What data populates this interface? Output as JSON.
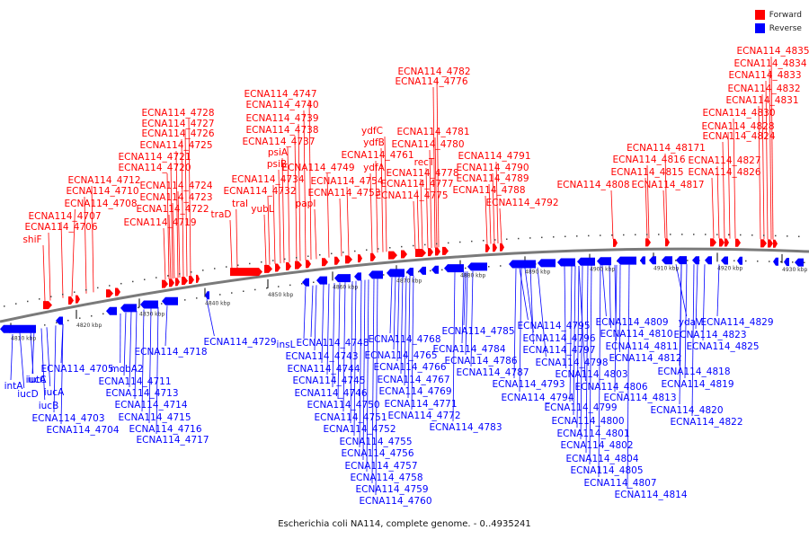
{
  "caption": "Escherichia coli NA114, complete genome. - 0..4935241",
  "legend": [
    {
      "label": "Forward",
      "color": "#ff0000"
    },
    {
      "label": "Reverse",
      "color": "#0000ff"
    }
  ],
  "colors": {
    "forward": "#ff0000",
    "reverse": "#0000ff",
    "backbone": "#7a7a7a"
  },
  "ticks": [
    {
      "label": "4810 kbp"
    },
    {
      "label": "4820 kbp"
    },
    {
      "label": "4830 kbp"
    },
    {
      "label": "4840 kbp"
    },
    {
      "label": "4850 kbp"
    },
    {
      "label": "4860 kbp"
    },
    {
      "label": "4870 kbp"
    },
    {
      "label": "4880 kbp"
    },
    {
      "label": "4890 kbp"
    },
    {
      "label": "4900 kbp"
    },
    {
      "label": "4910 kbp"
    },
    {
      "label": "4920 kbp"
    },
    {
      "label": "4930 kbp"
    }
  ],
  "forward_labels": [
    "shiF",
    "ECNA114_4706",
    "ECNA114_4707",
    "ECNA114_4708",
    "ECNA114_4710",
    "ECNA114_4712",
    "ECNA114_4719",
    "ECNA114_4722",
    "ECNA114_4723",
    "ECNA114_4724",
    "ECNA114_4720",
    "ECNA114_4721",
    "ECNA114_4725",
    "ECNA114_4726",
    "ECNA114_4727",
    "ECNA114_4728",
    "traD",
    "traI",
    "yubL",
    "ECNA114_4732",
    "ECNA114_4734",
    "psiB",
    "psiA",
    "ECNA114_4737",
    "ECNA114_4738",
    "ECNA114_4739",
    "ECNA114_4740",
    "ECNA114_4747",
    "papI",
    "ECNA114_4749",
    "ECNA114_4753",
    "ECNA114_4754",
    "ydfA",
    "ECNA114_4761",
    "ydfB",
    "ydfC",
    "ECNA114_4775",
    "ECNA114_4777",
    "ECNA114_4778",
    "recT",
    "ECNA114_4780",
    "ECNA114_4781",
    "ECNA114_4776",
    "ECNA114_4782",
    "ECNA114_4788",
    "ECNA114_4789",
    "ECNA114_4790",
    "ECNA114_4791",
    "ECNA114_4792",
    "ECNA114_4808",
    "ECNA114_4817",
    "ECNA114_4815",
    "ECNA114_4816",
    "ECNA114_48171",
    "ECNA114_4826",
    "ECNA114_4827",
    "ECNA114_4824",
    "ECNA114_4828",
    "ECNA114_4830",
    "ECNA114_4831",
    "ECNA114_4832",
    "ECNA114_4833",
    "ECNA114_4834",
    "ECNA114_4835"
  ],
  "reverse_labels": [
    "intA",
    "iucD",
    "iutA",
    "iucB",
    "iucC",
    "iucA",
    "ECNA114_4703",
    "ECNA114_4704",
    "ECNA114_4705",
    "mobA2",
    "ECNA114_4711",
    "ECNA114_4713",
    "ECNA114_4714",
    "ECNA114_4715",
    "ECNA114_4716",
    "ECNA114_4717",
    "ECNA114_4718",
    "ECNA114_4729",
    "insL",
    "ECNA114_4743",
    "ECNA114_4744",
    "ECNA114_4745",
    "ECNA114_4746",
    "ECNA114_4748",
    "ECNA114_4750",
    "ECNA114_4751",
    "ECNA114_4752",
    "ECNA114_4755",
    "ECNA114_4756",
    "ECNA114_4757",
    "ECNA114_4758",
    "ECNA114_4759",
    "ECNA114_4760",
    "ECNA114_4765",
    "ECNA114_4766",
    "ECNA114_4767",
    "ECNA114_4768",
    "ECNA114_4769",
    "ECNA114_4771",
    "ECNA114_4772",
    "ECNA114_4783",
    "ECNA114_4784",
    "ECNA114_4785",
    "ECNA114_4786",
    "ECNA114_4787",
    "ECNA114_4793",
    "ECNA114_4794",
    "ECNA114_4795",
    "ECNA114_4796",
    "ECNA114_4797",
    "ECNA114_4798",
    "ECNA114_4799",
    "ECNA114_4800",
    "ECNA114_4801",
    "ECNA114_4802",
    "ECNA114_4803",
    "ECNA114_4804",
    "ECNA114_4805",
    "ECNA114_4806",
    "ECNA114_4807",
    "ECNA114_4809",
    "ECNA114_4810",
    "ECNA114_4811",
    "ECNA114_4812",
    "ECNA114_4813",
    "ECNA114_4814",
    "ydaV",
    "ECNA114_4818",
    "ECNA114_4819",
    "ECNA114_4820",
    "ECNA114_4822",
    "ECNA114_4823",
    "ECNA114_4825",
    "ECNA114_4829"
  ]
}
